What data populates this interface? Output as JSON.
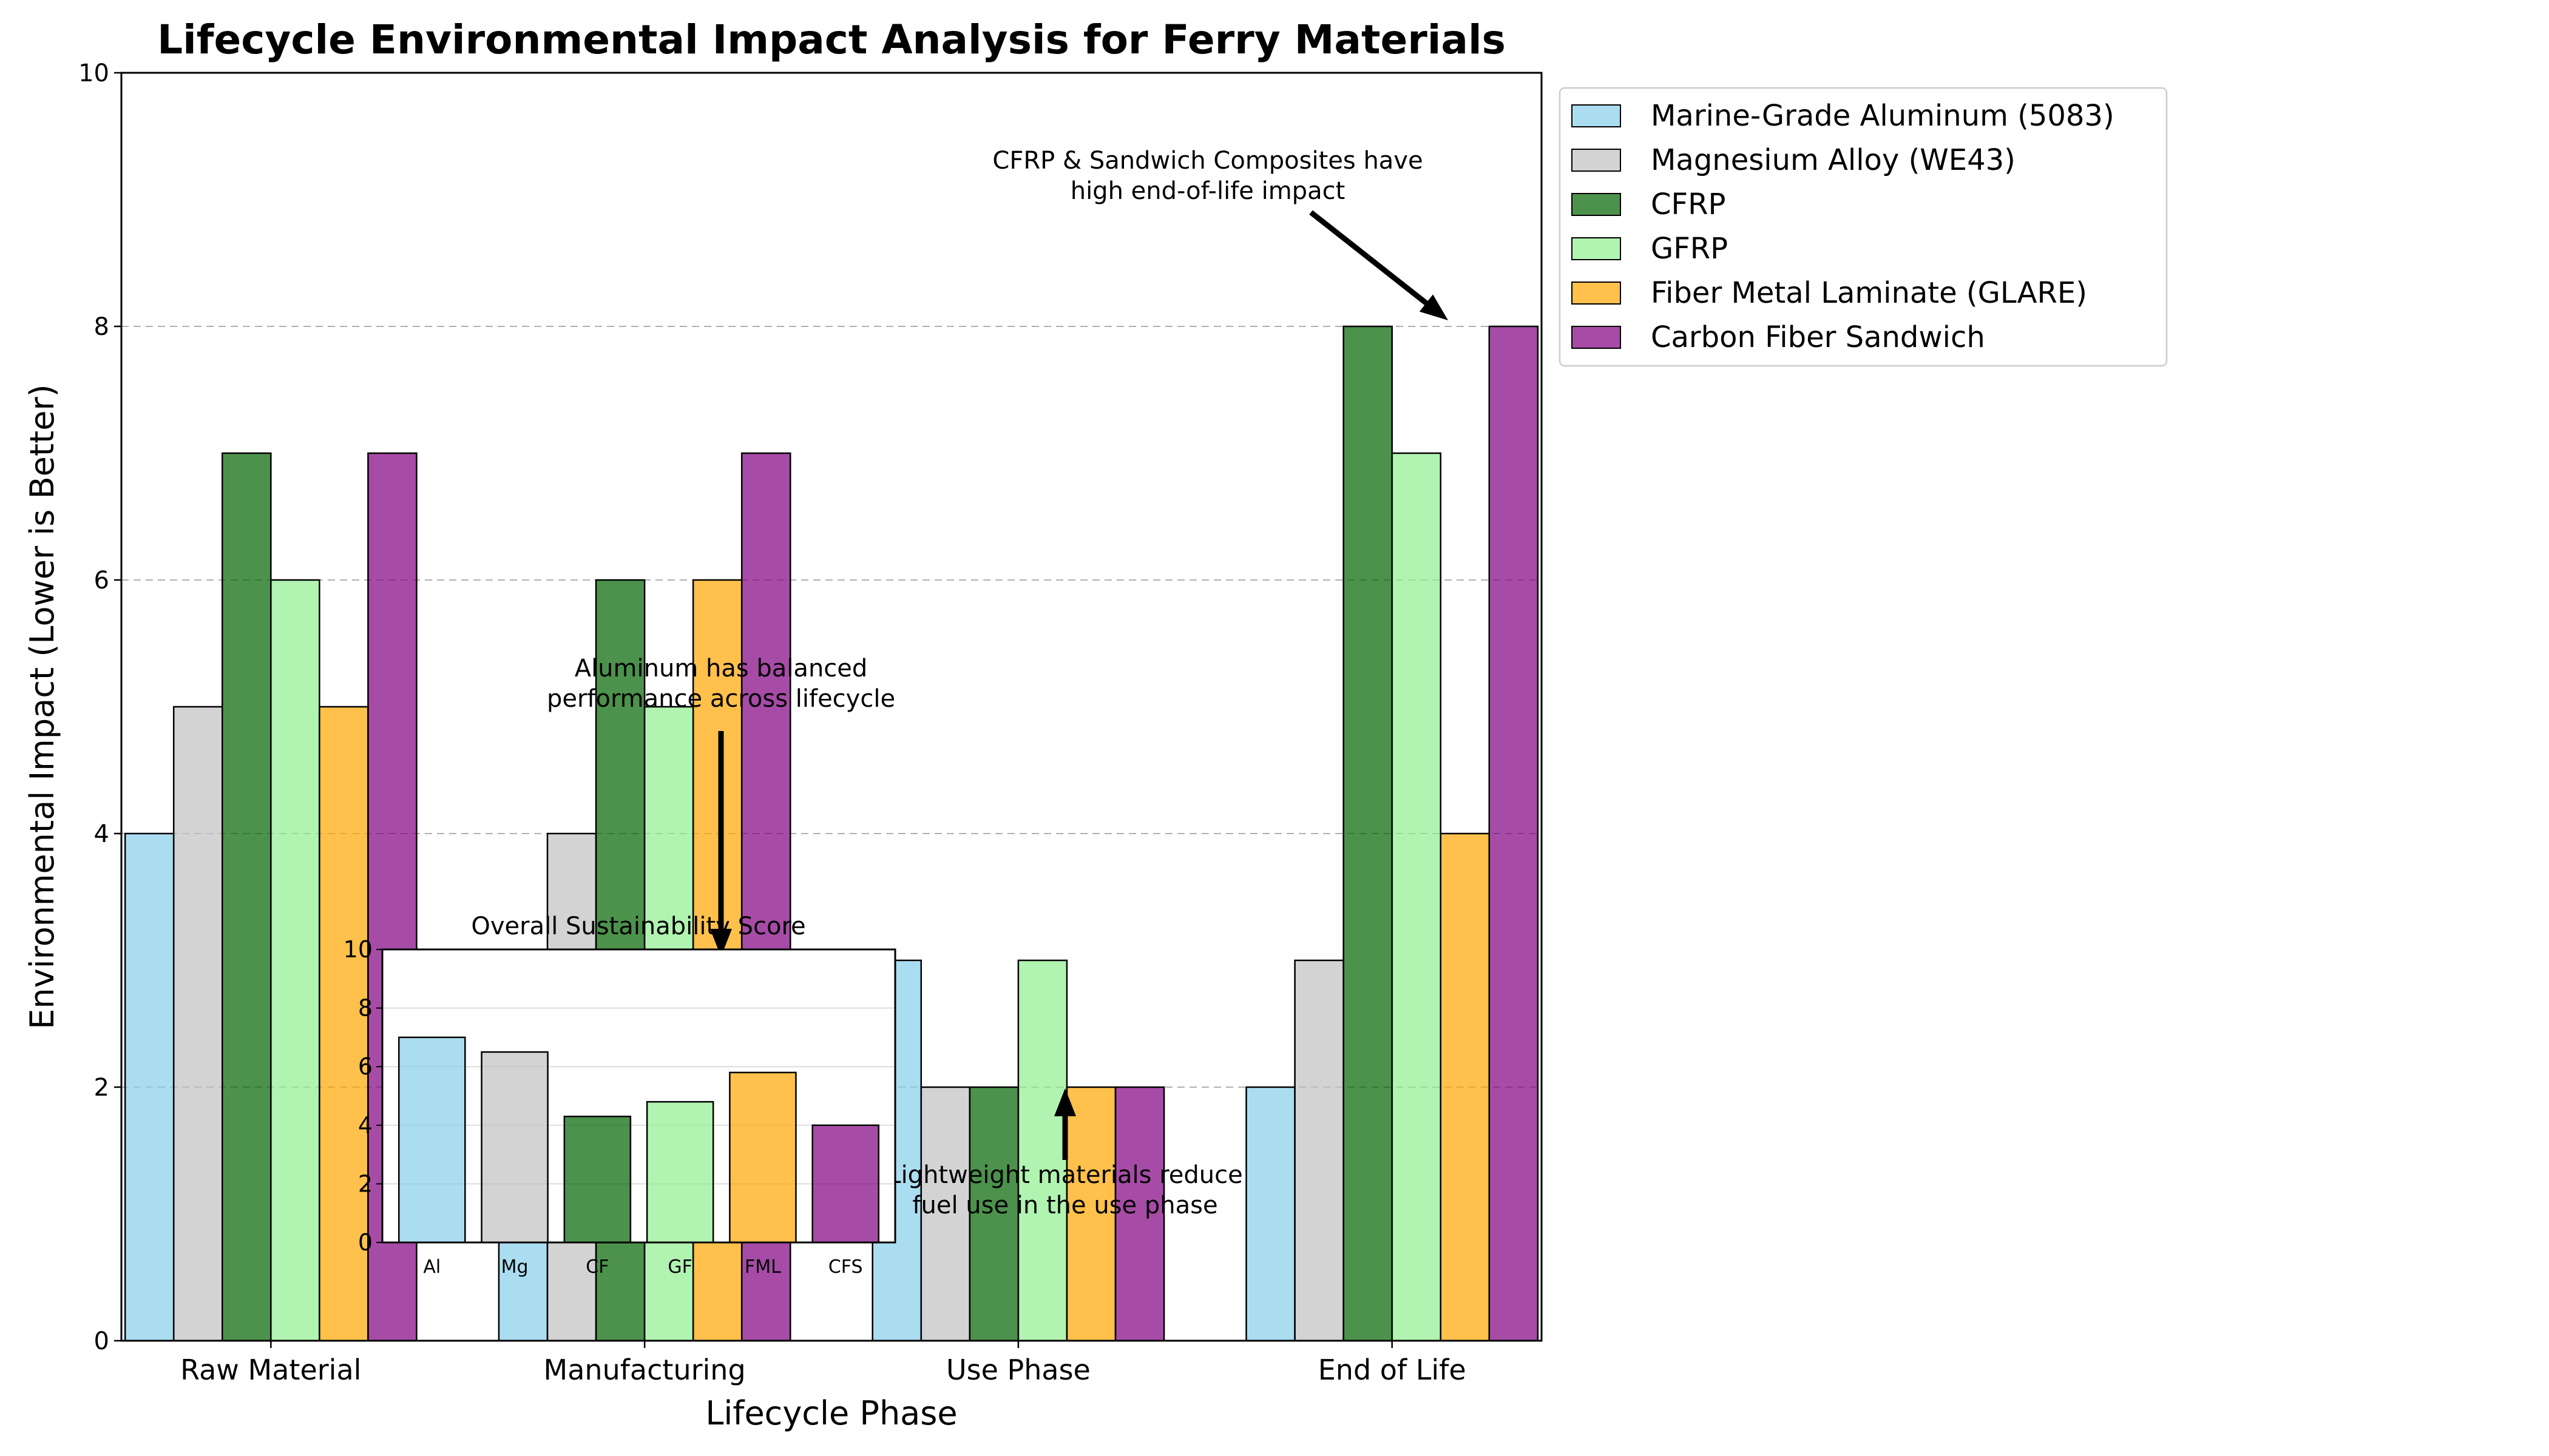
{
  "colors": {
    "Marine-Grade Aluminum (5083)": "#87CEEB",
    "Magnesium Alloy (WE43)": "#C0C0C0",
    "CFRP": "#006400",
    "GFRP": "#90EE90",
    "Fiber Metal Laminate (GLARE)": "#FFA500",
    "Carbon Fiber Sandwich": "#800080"
  },
  "chart_data": [
    {
      "type": "bar",
      "title": "Lifecycle Environmental Impact Analysis for Ferry Materials",
      "xlabel": "Lifecycle Phase",
      "ylabel": "Environmental Impact (Lower is Better)",
      "categories": [
        "Raw Material",
        "Manufacturing",
        "Use Phase",
        "End of Life"
      ],
      "ylim": [
        0,
        10
      ],
      "yticks": [
        "0",
        "2",
        "4",
        "6",
        "8",
        "10"
      ],
      "grid": "y dashed",
      "legend": "outside right",
      "series": [
        {
          "name": "Marine-Grade Aluminum (5083)",
          "values": [
            4,
            3,
            3,
            2
          ]
        },
        {
          "name": "Magnesium Alloy (WE43)",
          "values": [
            5,
            4,
            2,
            3
          ]
        },
        {
          "name": "CFRP",
          "values": [
            7,
            6,
            2,
            8
          ]
        },
        {
          "name": "GFRP",
          "values": [
            6,
            5,
            3,
            7
          ]
        },
        {
          "name": "Fiber Metal Laminate (GLARE)",
          "values": [
            5,
            6,
            2,
            4
          ]
        },
        {
          "name": "Carbon Fiber Sandwich",
          "values": [
            7,
            7,
            2,
            8
          ]
        }
      ],
      "annotations": [
        {
          "lines": [
            "CFRP & Sandwich Composites have",
            "high end-of-life impact"
          ],
          "points_to": [
            3.15,
            8.0
          ]
        },
        {
          "lines": [
            "Aluminum has balanced",
            "performance across lifecycle"
          ],
          "points_to": [
            1.15,
            3.0
          ]
        },
        {
          "lines": [
            "Lightweight materials reduce",
            "fuel use in the use phase"
          ],
          "points_to": [
            2.2,
            2.0
          ]
        }
      ]
    },
    {
      "type": "bar",
      "title": "Overall Sustainability Score",
      "categories": [
        "Al",
        "Mg",
        "CF",
        "GF",
        "FML",
        "CFS"
      ],
      "values": [
        7.0,
        6.5,
        4.3,
        4.8,
        5.8,
        4.0
      ],
      "ylim": [
        0,
        10
      ],
      "yticks": [
        "0",
        "2",
        "4",
        "6",
        "8",
        "10"
      ],
      "grid": "y"
    }
  ]
}
